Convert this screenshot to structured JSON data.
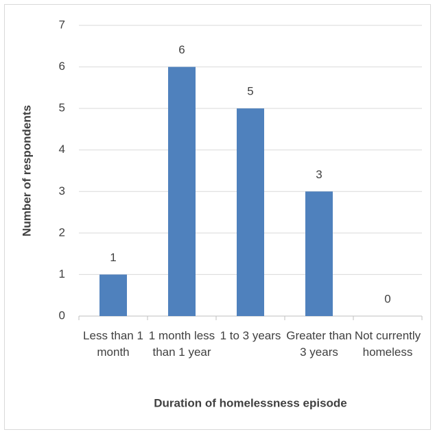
{
  "chart_data": {
    "type": "bar",
    "x_label": "Duration of homelessness episode",
    "y_label": "Number of respondents",
    "categories": [
      "Less than 1 month",
      "1 month less than 1 year",
      "1 to 3 years",
      "Greater than 3 years",
      "Not currently homeless"
    ],
    "values": [
      1,
      6,
      5,
      3,
      0
    ],
    "color": "#4f81bd",
    "ylim": [
      0,
      7
    ],
    "yticks": [
      0,
      1,
      2,
      3,
      4,
      5,
      6,
      7
    ],
    "grid": true
  }
}
